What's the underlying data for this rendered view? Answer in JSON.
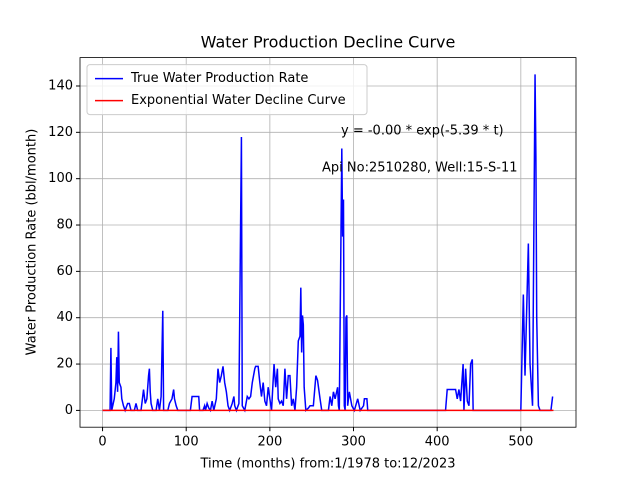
{
  "chart_data": {
    "type": "line",
    "title": "Water Production Decline Curve",
    "xlabel": "Time (months) from:1/1978 to:12/2023",
    "ylabel": "Water Production Rate (bbl/month)",
    "annotations": [
      "y = -0.00 * exp(-5.39 * t)",
      "Api No:2510280, Well:15-S-11"
    ],
    "xlim": [
      -26.95,
      565.95
    ],
    "ylim": [
      -7.25,
      152.25
    ],
    "xticks": [
      0,
      100,
      200,
      300,
      400,
      500
    ],
    "yticks": [
      0,
      20,
      40,
      60,
      80,
      100,
      120,
      140
    ],
    "grid": true,
    "legend": "upper left",
    "series": [
      {
        "name": "True Water Production Rate",
        "color": "#0000ff",
        "x": [
          0,
          9,
          10,
          11,
          14,
          16,
          17,
          18,
          19,
          20,
          22,
          23,
          25,
          27,
          30,
          32,
          34,
          38,
          40,
          42,
          46,
          49,
          51,
          53,
          55,
          56,
          57,
          58,
          60,
          64,
          66,
          68,
          70,
          72,
          73,
          78,
          80,
          83,
          85,
          86,
          88,
          90,
          105,
          107,
          115,
          116,
          120,
          122,
          123,
          125,
          127,
          129,
          131,
          133,
          136,
          138,
          140,
          142,
          144,
          146,
          148,
          150,
          152,
          155,
          157,
          158,
          160,
          163,
          166,
          167,
          170,
          173,
          175,
          177,
          179,
          182,
          183,
          186,
          188,
          190,
          192,
          194,
          196,
          198,
          200,
          202,
          205,
          207,
          209,
          210,
          212,
          214,
          216,
          218,
          220,
          222,
          224,
          226,
          228,
          230,
          232,
          234,
          236,
          237,
          238,
          239,
          240,
          241,
          243,
          246,
          248,
          252,
          255,
          257,
          260,
          262,
          270,
          272,
          274,
          276,
          278,
          281,
          282,
          283,
          286,
          287,
          288,
          289,
          290,
          291,
          292,
          293,
          295,
          298,
          301,
          305,
          308,
          312,
          313,
          316,
          317,
          400,
          410,
          412,
          422,
          424,
          426,
          428,
          431,
          432,
          434,
          436,
          438,
          440,
          441,
          442,
          443,
          500,
          503,
          505,
          509,
          511,
          514,
          517,
          518,
          519,
          521,
          523,
          536,
          538
        ],
        "values": [
          0,
          0,
          27,
          0,
          5,
          12,
          23,
          8,
          34,
          12,
          10,
          5,
          2,
          0,
          3,
          3,
          0,
          0,
          3,
          0,
          0,
          9,
          3,
          5,
          15,
          18,
          8,
          3,
          0,
          0,
          5,
          0,
          6,
          43,
          0,
          0,
          3,
          5,
          9,
          5,
          2,
          0,
          0,
          6,
          6,
          0,
          0,
          2,
          0,
          3,
          1,
          0,
          4,
          0,
          5,
          18,
          12,
          15,
          19,
          12,
          8,
          2,
          0,
          3,
          6,
          2,
          0,
          3,
          118,
          2,
          0,
          6,
          5,
          6,
          12,
          18,
          19,
          19,
          12,
          6,
          12,
          4,
          2,
          10,
          5,
          0,
          20,
          10,
          18,
          5,
          3,
          4,
          2,
          18,
          5,
          15,
          15,
          2,
          5,
          0,
          10,
          30,
          32,
          53,
          25,
          41,
          37,
          10,
          0,
          1,
          2,
          2,
          15,
          13,
          5,
          0,
          0,
          6,
          2,
          8,
          5,
          10,
          2,
          0,
          113,
          75,
          91,
          2,
          0,
          40,
          41,
          2,
          8,
          2,
          0,
          5,
          0,
          2,
          5,
          5,
          0,
          0,
          0,
          9,
          9,
          5,
          9,
          4,
          20,
          0,
          18,
          4,
          2,
          20,
          21,
          22,
          0,
          0,
          50,
          15,
          72,
          20,
          2,
          145,
          110,
          40,
          2,
          0,
          0,
          6
        ]
      },
      {
        "name": "Exponential Water Decline Curve",
        "color": "#ff0000",
        "x": [
          0,
          539
        ],
        "values": [
          0,
          0
        ]
      }
    ]
  }
}
